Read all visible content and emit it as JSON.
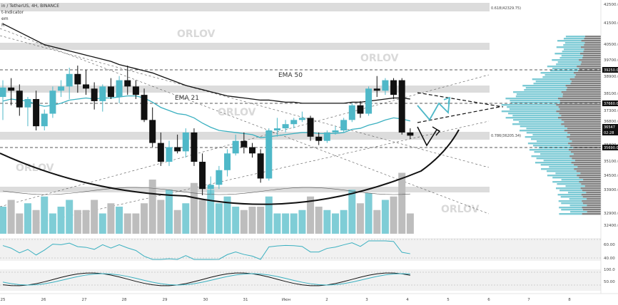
{
  "header": {
    "symbol": "in / TetherUS, 4H, BINANCE",
    "line2": "t-Indicator",
    "line3": "em",
    "line4": "R"
  },
  "watermark": "ORLOV",
  "fib_labels": {
    "f0618": "0.618(42329.75)",
    "f0786": "0.786(36205.34)"
  },
  "ema_labels": {
    "ema50": "EMA 50",
    "ema21": "EMA 21"
  },
  "colors": {
    "bull": "#4fb8c8",
    "bear": "#111111",
    "ema21": "#3ab0c0",
    "ema50": "#111111",
    "band": "#d0d0d0",
    "vol_bull": "#7fcdd6",
    "vol_bear": "#bdbdbd",
    "profile_dark": "#555555",
    "profile_light": "#6fc4d0",
    "curve": "#111111"
  },
  "price_axis": {
    "ticks": [
      "42500.00",
      "41500.00",
      "40500.00",
      "39700.00",
      "38900.00",
      "38100.00",
      "37300.00",
      "36800.00",
      "35800.00",
      "35100.00",
      "34500.00",
      "33900.00",
      "32900.00",
      "32400.00"
    ],
    "tags": [
      {
        "text": "39250.00",
        "dark": true
      },
      {
        "text": "37660.00",
        "dark": true
      },
      {
        "text": "36547",
        "dark": true
      },
      {
        "text": "02:28",
        "dark": true
      },
      {
        "text": "35690.00",
        "dark": true
      }
    ]
  },
  "rsi_axis": {
    "ticks": [
      "60.00",
      "40.00"
    ]
  },
  "stoch_axis": {
    "ticks": [
      "100.0",
      "50.00"
    ]
  },
  "time_axis": {
    "labels": [
      "25",
      "26",
      "27",
      "28",
      "29",
      "30",
      "31",
      "Июн",
      "2",
      "3",
      "4",
      "5",
      "6",
      "7",
      "8"
    ]
  },
  "chart_data": {
    "type": "candlestick",
    "title": "",
    "ylabel": "",
    "ylim": [
      32200,
      42900
    ],
    "overlays": [
      "EMA 21",
      "EMA 50",
      "Fibonacci levels 0.618 and 0.786",
      "Volume profile",
      "Cup-shaped arc",
      "Trend channel lines"
    ],
    "candles": [
      {
        "o": 38400,
        "h": 39200,
        "l": 37300,
        "c": 38850
      },
      {
        "o": 38850,
        "h": 39300,
        "l": 38000,
        "c": 38700
      },
      {
        "o": 38700,
        "h": 39000,
        "l": 37500,
        "c": 37900
      },
      {
        "o": 37900,
        "h": 38400,
        "l": 37000,
        "c": 38300
      },
      {
        "o": 38300,
        "h": 38700,
        "l": 36800,
        "c": 37000
      },
      {
        "o": 37000,
        "h": 37800,
        "l": 36800,
        "c": 37600
      },
      {
        "o": 37600,
        "h": 38900,
        "l": 37400,
        "c": 38700
      },
      {
        "o": 38700,
        "h": 39200,
        "l": 38400,
        "c": 38900
      },
      {
        "o": 38900,
        "h": 39800,
        "l": 38300,
        "c": 39500
      },
      {
        "o": 39500,
        "h": 39900,
        "l": 38600,
        "c": 39000
      },
      {
        "o": 39000,
        "h": 39700,
        "l": 38500,
        "c": 38800
      },
      {
        "o": 38800,
        "h": 39100,
        "l": 37800,
        "c": 38200
      },
      {
        "o": 38200,
        "h": 39000,
        "l": 37700,
        "c": 38900
      },
      {
        "o": 38900,
        "h": 39300,
        "l": 38300,
        "c": 38400
      },
      {
        "o": 38400,
        "h": 39400,
        "l": 38100,
        "c": 39200
      },
      {
        "o": 39200,
        "h": 39900,
        "l": 38500,
        "c": 38900
      },
      {
        "o": 38900,
        "h": 39200,
        "l": 38300,
        "c": 38500
      },
      {
        "o": 38500,
        "h": 38800,
        "l": 37200,
        "c": 37300
      },
      {
        "o": 37300,
        "h": 37900,
        "l": 36000,
        "c": 36200
      },
      {
        "o": 36200,
        "h": 36700,
        "l": 35100,
        "c": 35300
      },
      {
        "o": 35300,
        "h": 36300,
        "l": 35100,
        "c": 36000
      },
      {
        "o": 36000,
        "h": 36600,
        "l": 35700,
        "c": 35800
      },
      {
        "o": 35800,
        "h": 36900,
        "l": 35500,
        "c": 36700
      },
      {
        "o": 36700,
        "h": 36900,
        "l": 35100,
        "c": 35300
      },
      {
        "o": 35300,
        "h": 35700,
        "l": 33700,
        "c": 34000
      },
      {
        "o": 34000,
        "h": 34600,
        "l": 33700,
        "c": 34200
      },
      {
        "o": 34200,
        "h": 35100,
        "l": 34000,
        "c": 34900
      },
      {
        "o": 34900,
        "h": 35900,
        "l": 34600,
        "c": 35700
      },
      {
        "o": 35700,
        "h": 36600,
        "l": 35600,
        "c": 36300
      },
      {
        "o": 36300,
        "h": 36700,
        "l": 35700,
        "c": 36000
      },
      {
        "o": 36000,
        "h": 36200,
        "l": 35500,
        "c": 35700
      },
      {
        "o": 35700,
        "h": 35900,
        "l": 34300,
        "c": 34500
      },
      {
        "o": 34500,
        "h": 36900,
        "l": 34400,
        "c": 36800
      },
      {
        "o": 36800,
        "h": 37400,
        "l": 36500,
        "c": 36900
      },
      {
        "o": 36900,
        "h": 37300,
        "l": 36700,
        "c": 37100
      },
      {
        "o": 37100,
        "h": 37400,
        "l": 36900,
        "c": 37300
      },
      {
        "o": 37300,
        "h": 37700,
        "l": 37200,
        "c": 37400
      },
      {
        "o": 37400,
        "h": 37500,
        "l": 36300,
        "c": 36500
      },
      {
        "o": 36500,
        "h": 36700,
        "l": 36100,
        "c": 36300
      },
      {
        "o": 36300,
        "h": 36800,
        "l": 36200,
        "c": 36700
      },
      {
        "o": 36700,
        "h": 37000,
        "l": 36600,
        "c": 36800
      },
      {
        "o": 36800,
        "h": 37400,
        "l": 36700,
        "c": 37300
      },
      {
        "o": 37300,
        "h": 38100,
        "l": 37200,
        "c": 38000
      },
      {
        "o": 38000,
        "h": 38200,
        "l": 37400,
        "c": 37600
      },
      {
        "o": 37600,
        "h": 38900,
        "l": 37500,
        "c": 38800
      },
      {
        "o": 38800,
        "h": 39400,
        "l": 38400,
        "c": 38700
      },
      {
        "o": 38700,
        "h": 39300,
        "l": 38500,
        "c": 39200
      },
      {
        "o": 39200,
        "h": 39300,
        "l": 38300,
        "c": 38500
      },
      {
        "o": 39200,
        "h": 39300,
        "l": 36600,
        "c": 36700
      },
      {
        "o": 36700,
        "h": 36900,
        "l": 36400,
        "c": 36550
      }
    ],
    "ema21": [
      38200,
      38300,
      38250,
      38200,
      38050,
      37950,
      38000,
      38100,
      38250,
      38300,
      38350,
      38300,
      38350,
      38350,
      38400,
      38450,
      38450,
      38350,
      38150,
      37900,
      37750,
      37600,
      37550,
      37400,
      37150,
      36950,
      36800,
      36750,
      36700,
      36650,
      36600,
      36450,
      36500,
      36550,
      36600,
      36650,
      36700,
      36700,
      36650,
      36650,
      36650,
      36700,
      36850,
      36900,
      37050,
      37150,
      37300,
      37400,
      37350,
      37250
    ],
    "ema50": [
      41900,
      41700,
      41500,
      41300,
      41100,
      40900,
      40800,
      40700,
      40600,
      40500,
      40400,
      40300,
      40200,
      40100,
      39950,
      39850,
      39750,
      39650,
      39550,
      39400,
      39250,
      39100,
      38950,
      38850,
      38750,
      38650,
      38550,
      38450,
      38400,
      38350,
      38300,
      38250,
      38250,
      38200,
      38150,
      38150,
      38100,
      38100,
      38100,
      38100,
      38100,
      38100,
      38150,
      38150,
      38200,
      38250,
      38300,
      38350,
      38350,
      38300
    ],
    "volume_levels": [
      0.4,
      0.5,
      0.3,
      0.45,
      0.35,
      0.55,
      0.3,
      0.4,
      0.5,
      0.35,
      0.35,
      0.5,
      0.3,
      0.45,
      0.4,
      0.3,
      0.3,
      0.45,
      0.8,
      0.5,
      0.65,
      0.35,
      0.45,
      0.75,
      0.5,
      0.65,
      0.45,
      0.55,
      0.4,
      0.35,
      0.4,
      0.4,
      0.55,
      0.3,
      0.3,
      0.3,
      0.35,
      0.55,
      0.4,
      0.35,
      0.3,
      0.35,
      0.65,
      0.45,
      0.6,
      0.35,
      0.5,
      0.55,
      0.9,
      0.3
    ],
    "fib_levels": [
      {
        "ratio": 0.618,
        "price": 42329.75
      },
      {
        "ratio": 0.786,
        "price": 36205.34
      }
    ]
  }
}
